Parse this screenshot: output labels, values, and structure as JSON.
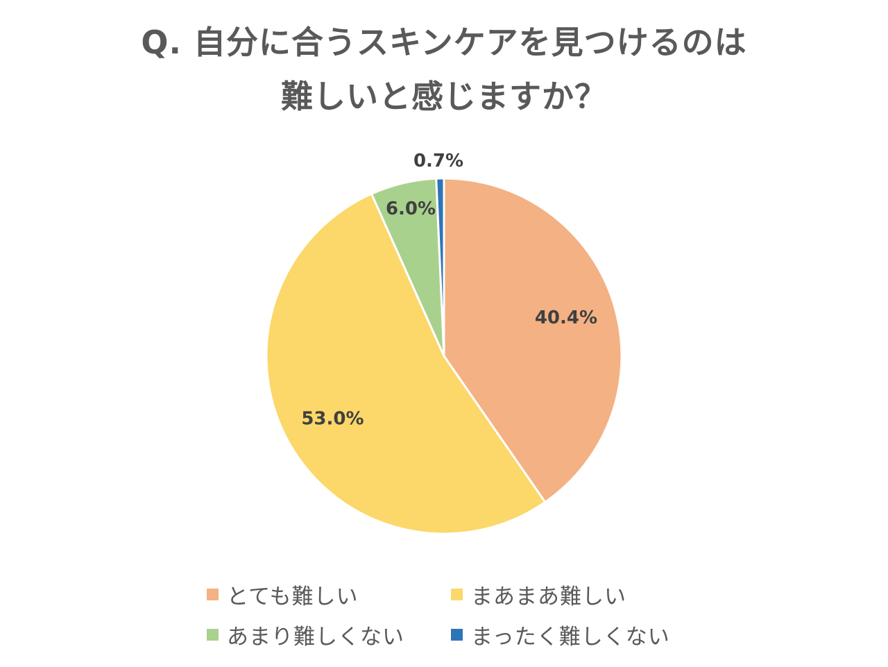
{
  "chart_data": {
    "type": "pie",
    "title_lines": [
      "Q. 自分に合うスキンケアを見つけるのは",
      "難しいと感じますか？"
    ],
    "slices": [
      {
        "label": "とても難しい",
        "value": 40.4,
        "display": "40.4%",
        "color": "#F4B183"
      },
      {
        "label": "まあまあ難しい",
        "value": 53.0,
        "display": "53.0%",
        "color": "#FCD769"
      },
      {
        "label": "あまり難しくない",
        "value": 6.0,
        "display": "6.0%",
        "color": "#A9D18E"
      },
      {
        "label": "まったく難しくない",
        "value": 0.7,
        "display": "0.7%",
        "color": "#2E75B6"
      }
    ],
    "legend_position": "bottom",
    "start_angle": "12 o'clock",
    "direction": "clockwise"
  }
}
